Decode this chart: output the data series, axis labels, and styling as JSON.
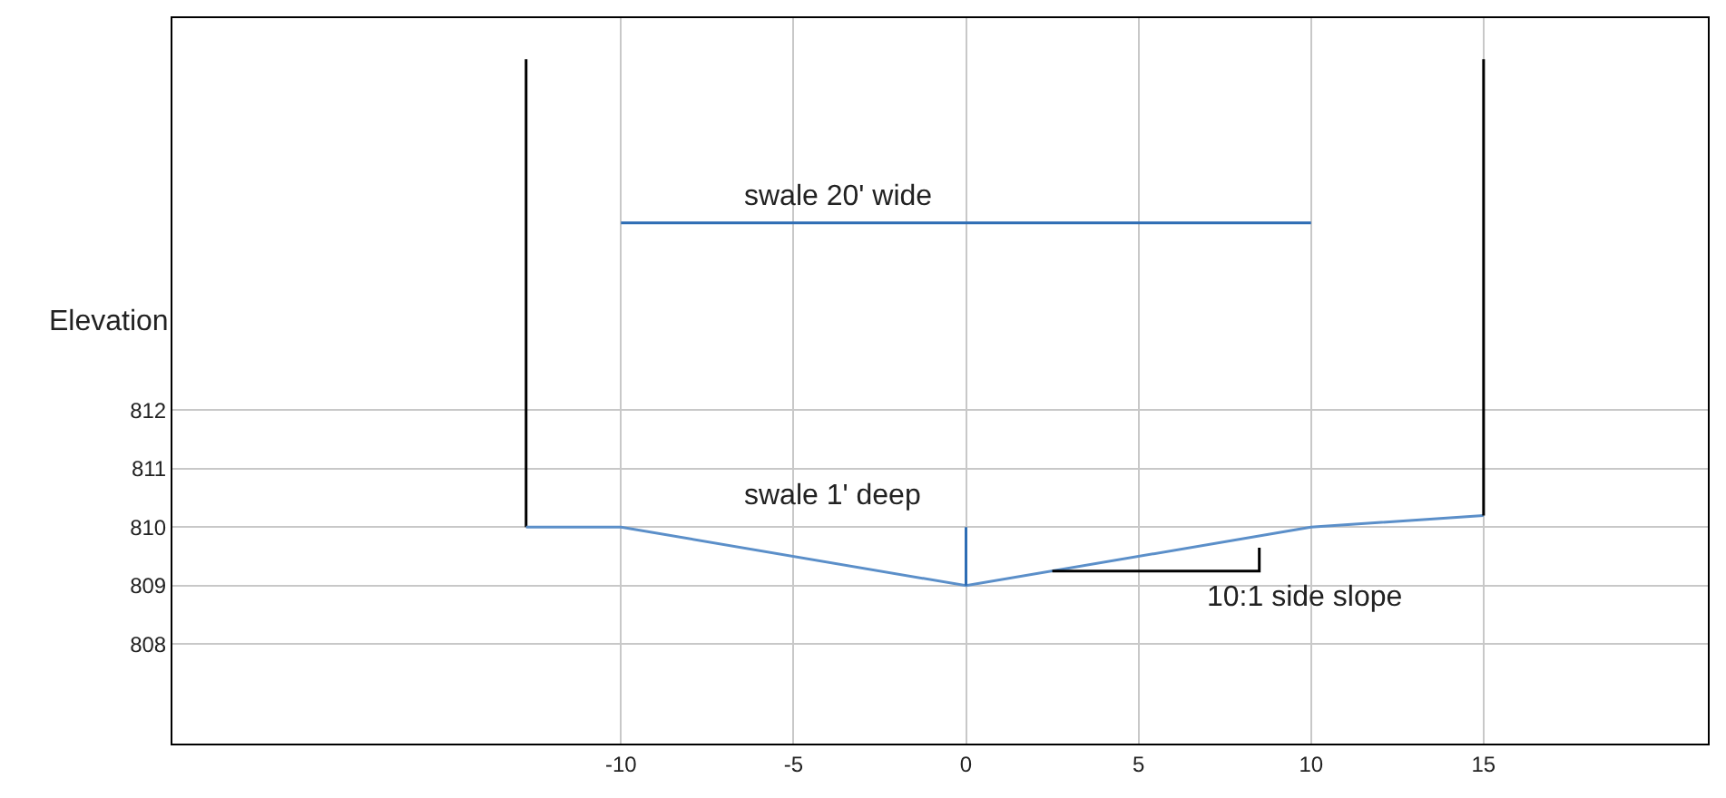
{
  "chart_data": {
    "type": "line",
    "ylabel": "Elevation",
    "xlim": [
      -23,
      21.5
    ],
    "xticks": [
      -10,
      -5,
      0,
      5,
      10,
      15
    ],
    "ylim": [
      806.3,
      818.7
    ],
    "yticks": [
      808,
      809,
      810,
      811,
      812
    ],
    "grid": true,
    "marker": "none",
    "line_style": "solid",
    "series": [
      {
        "color": "#000000",
        "x": [
          -12.75,
          -12.75
        ],
        "values": [
          818,
          810
        ]
      },
      {
        "color": "#5b8fc9",
        "x": [
          -12.75,
          -10,
          0,
          10,
          15
        ],
        "values": [
          810,
          810,
          809,
          810,
          810.2
        ]
      },
      {
        "color": "#000000",
        "x": [
          15,
          15
        ],
        "values": [
          810.2,
          818
        ]
      },
      {
        "color": "#2e6db4",
        "x": [
          -10,
          10
        ],
        "values": [
          815.2,
          815.2
        ]
      },
      {
        "color": "#2e6db4",
        "x": [
          0,
          0
        ],
        "values": [
          809,
          810
        ]
      },
      {
        "color": "#000000",
        "x": [
          2.5,
          8.5,
          8.5
        ],
        "values": [
          809.25,
          809.25,
          809.65
        ]
      }
    ],
    "annotations": [
      "swale 20' wide",
      "swale 1' deep",
      "10:1 side slope"
    ]
  }
}
